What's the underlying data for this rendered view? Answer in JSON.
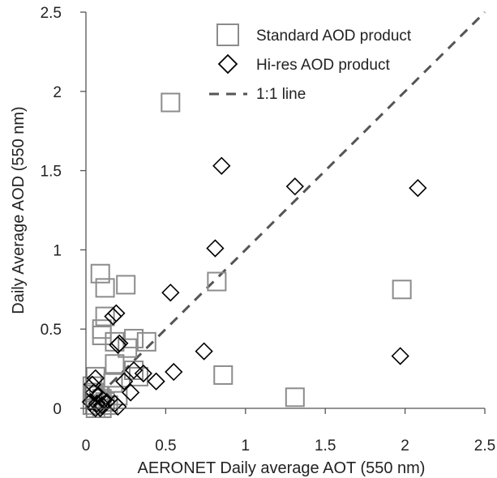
{
  "chart_data": {
    "type": "scatter",
    "title": "",
    "xlabel": "AERONET Daily average AOT (550 nm)",
    "ylabel": "Daily Average AOD (550 nm)",
    "xlim": [
      0,
      2.5
    ],
    "ylim": [
      0,
      2.5
    ],
    "grid": false,
    "legend_position": "top-right",
    "x_ticks": [
      "0",
      "0.5",
      "1",
      "1.5",
      "2",
      "2.5"
    ],
    "y_ticks": [
      "0",
      "0.5",
      "1",
      "1.5",
      "2",
      "2.5"
    ],
    "colors": {
      "standard": "#8c8c8c",
      "hires": "#000000",
      "line": "#555555"
    },
    "series": [
      {
        "name": "Standard AOD product",
        "marker": "square",
        "points": [
          [
            0.53,
            1.93
          ],
          [
            0.82,
            0.8
          ],
          [
            1.98,
            0.75
          ],
          [
            0.86,
            0.21
          ],
          [
            1.31,
            0.07
          ],
          [
            0.09,
            0.85
          ],
          [
            0.12,
            0.76
          ],
          [
            0.25,
            0.78
          ],
          [
            0.12,
            0.58
          ],
          [
            0.1,
            0.5
          ],
          [
            0.1,
            0.46
          ],
          [
            0.18,
            0.42
          ],
          [
            0.3,
            0.44
          ],
          [
            0.38,
            0.42
          ],
          [
            0.26,
            0.38
          ],
          [
            0.18,
            0.28
          ],
          [
            0.3,
            0.24
          ],
          [
            0.33,
            0.2
          ],
          [
            0.06,
            0.2
          ],
          [
            0.04,
            0.14
          ],
          [
            0.05,
            0.1
          ],
          [
            0.08,
            0.08
          ],
          [
            0.1,
            0.06
          ],
          [
            0.12,
            0.04
          ],
          [
            0.04,
            0.02
          ],
          [
            0.06,
            0.0
          ],
          [
            0.1,
            0.0
          ],
          [
            0.14,
            0.02
          ],
          [
            0.2,
            0.08
          ],
          [
            0.17,
            0.16
          ]
        ]
      },
      {
        "name": "Hi-res AOD product",
        "marker": "diamond",
        "points": [
          [
            0.85,
            1.53
          ],
          [
            1.31,
            1.4
          ],
          [
            2.08,
            1.39
          ],
          [
            0.81,
            1.01
          ],
          [
            0.53,
            0.73
          ],
          [
            0.19,
            0.6
          ],
          [
            0.17,
            0.58
          ],
          [
            0.21,
            0.41
          ],
          [
            0.2,
            0.4
          ],
          [
            0.74,
            0.36
          ],
          [
            1.97,
            0.33
          ],
          [
            0.3,
            0.24
          ],
          [
            0.36,
            0.22
          ],
          [
            0.44,
            0.17
          ],
          [
            0.55,
            0.23
          ],
          [
            0.24,
            0.17
          ],
          [
            0.28,
            0.1
          ],
          [
            0.06,
            0.19
          ],
          [
            0.04,
            0.15
          ],
          [
            0.05,
            0.1
          ],
          [
            0.08,
            0.08
          ],
          [
            0.11,
            0.05
          ],
          [
            0.13,
            0.04
          ],
          [
            0.03,
            0.04
          ],
          [
            0.07,
            0.03
          ],
          [
            0.1,
            0.02
          ],
          [
            0.06,
            0.0
          ],
          [
            0.09,
            0.0
          ],
          [
            0.18,
            0.03
          ],
          [
            0.2,
            0.01
          ]
        ]
      },
      {
        "name": "1:1 line",
        "line": [
          [
            0,
            0
          ],
          [
            2.5,
            2.5
          ]
        ]
      }
    ]
  }
}
